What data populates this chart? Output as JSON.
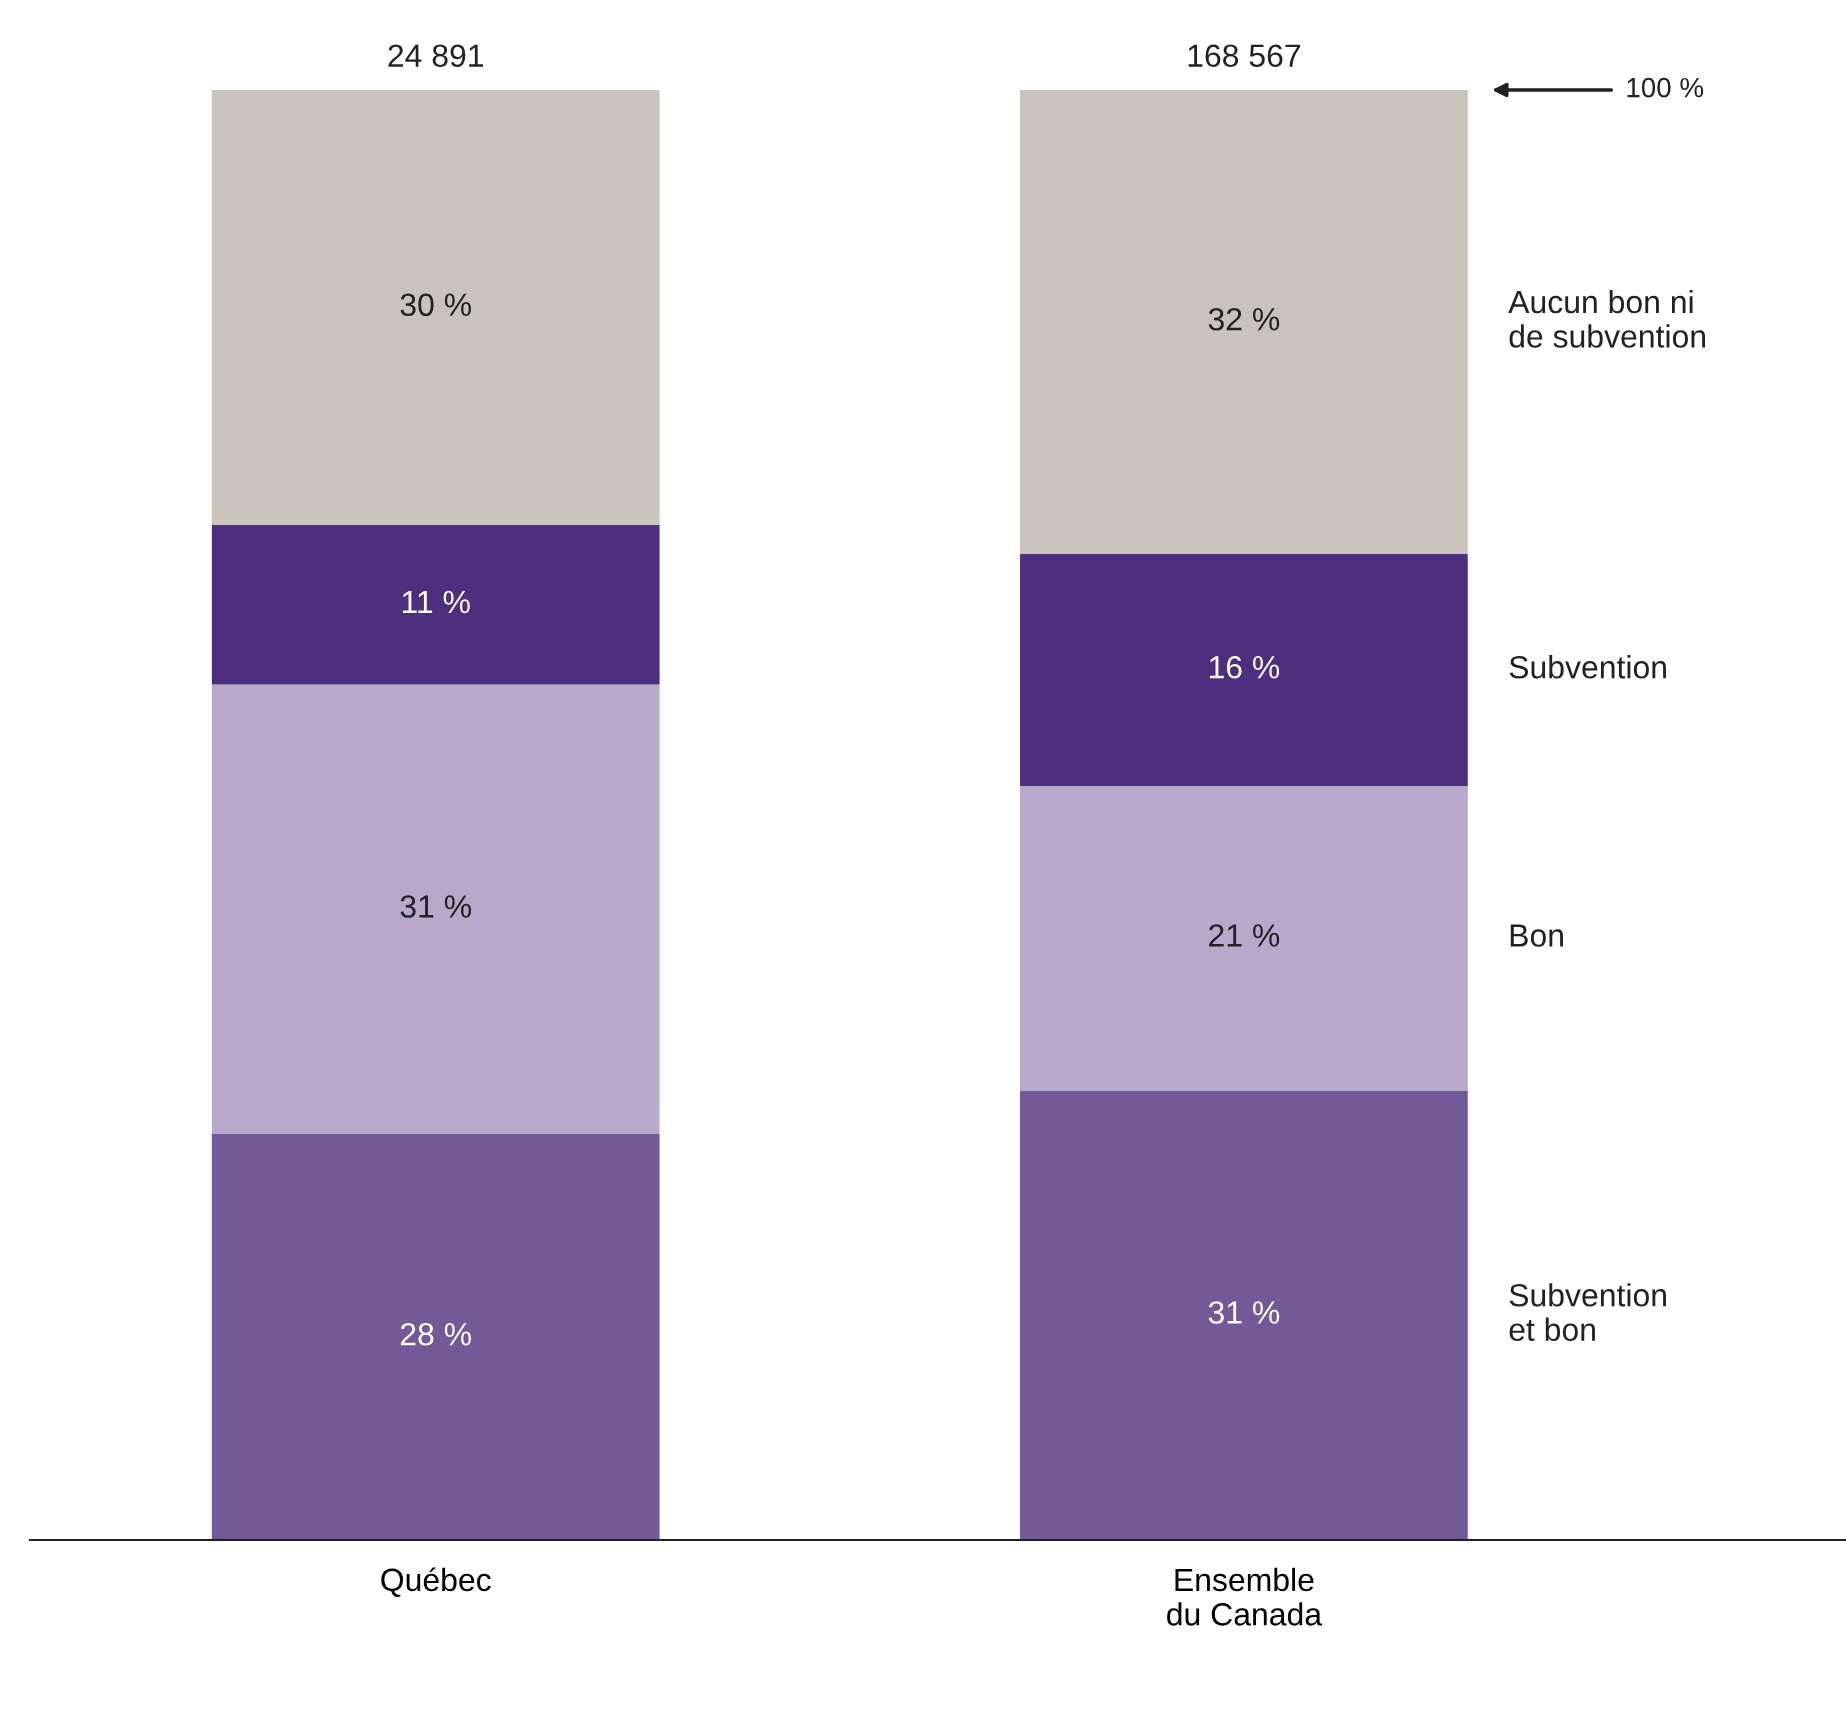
{
  "chart_data": {
    "type": "bar",
    "stacked": true,
    "legend": false,
    "categories": [
      "Québec",
      "Ensemble\ndu Canada"
    ],
    "series": [
      {
        "name": "Subvention\net bon",
        "color": "#735998",
        "values": [
          28,
          31
        ],
        "value_labels": [
          "28 %",
          "31 %"
        ]
      },
      {
        "name": "Bon",
        "color": "#b8a9cb",
        "values": [
          31,
          21
        ],
        "value_labels": [
          "31 %",
          "21 %"
        ]
      },
      {
        "name": "Subvention",
        "color": "#4f2d7f",
        "values": [
          11,
          16
        ],
        "value_labels": [
          "11 %",
          "16 %"
        ]
      },
      {
        "name": "Aucun bon ni\nde subvention",
        "color": "#c9c3bd",
        "values": [
          30,
          32
        ],
        "value_labels": [
          "30 %",
          "32 %"
        ]
      }
    ],
    "annotations": [
      "100 %",
      {
        "text": "24 891",
        "x": "Québec",
        "y": 100
      },
      {
        "text": "168 567",
        "x": "Ensemble\ndu Canada",
        "y": 100
      }
    ]
  }
}
